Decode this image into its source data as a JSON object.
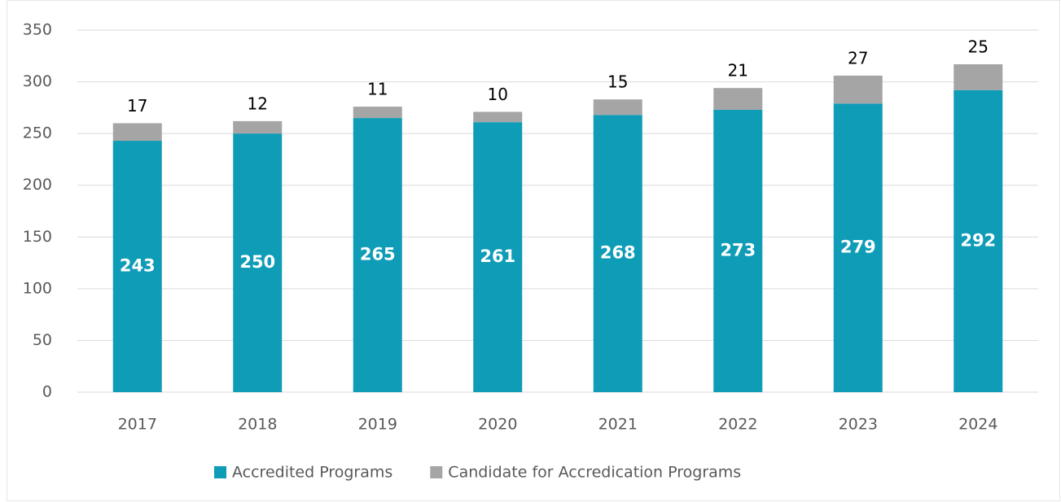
{
  "chart_data": {
    "type": "stacked_bar",
    "categories": [
      "2017",
      "2018",
      "2019",
      "2020",
      "2021",
      "2022",
      "2023",
      "2024"
    ],
    "series": [
      {
        "name": "Accredited Programs",
        "color": "#0e9cb7",
        "values": [
          243,
          250,
          265,
          261,
          268,
          273,
          279,
          292
        ]
      },
      {
        "name": "Candidate for Accredication Programs",
        "color": "#a5a5a5",
        "values": [
          17,
          12,
          11,
          10,
          15,
          21,
          27,
          25
        ]
      }
    ],
    "ylim": [
      0,
      350
    ],
    "yticks": [
      0,
      50,
      100,
      150,
      200,
      250,
      300,
      350
    ],
    "grid": true,
    "legend": "bottom"
  }
}
